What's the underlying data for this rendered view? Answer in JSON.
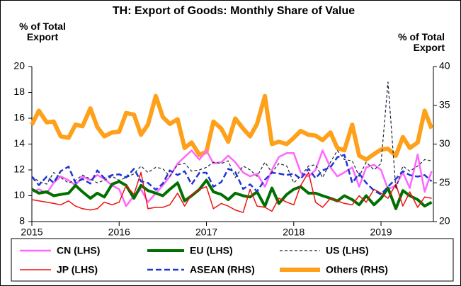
{
  "chart_data": {
    "type": "line",
    "title": "TH: Export of Goods: Monthly Share of Value",
    "y_label": "% of Total Export",
    "y2_label": "% of Total Export",
    "x": [
      2015,
      2015.08,
      2015.17,
      2015.25,
      2015.33,
      2015.42,
      2015.5,
      2015.58,
      2015.67,
      2015.75,
      2015.83,
      2015.92,
      2016,
      2016.08,
      2016.17,
      2016.25,
      2016.33,
      2016.42,
      2016.5,
      2016.58,
      2016.67,
      2016.75,
      2016.83,
      2016.92,
      2017,
      2017.08,
      2017.17,
      2017.25,
      2017.33,
      2017.42,
      2017.5,
      2017.58,
      2017.67,
      2017.75,
      2017.83,
      2017.92,
      2018,
      2018.08,
      2018.17,
      2018.25,
      2018.33,
      2018.42,
      2018.5,
      2018.58,
      2018.67,
      2018.75,
      2018.83,
      2018.92,
      2019,
      2019.08,
      2019.17,
      2019.25,
      2019.33,
      2019.42,
      2019.5,
      2019.58
    ],
    "xlim": [
      2015,
      2019.6
    ],
    "xticks": [
      2015,
      2016,
      2017,
      2018,
      2019
    ],
    "ylim": [
      8,
      20
    ],
    "yticks": [
      8,
      10,
      12,
      14,
      16,
      18,
      20
    ],
    "y2lim": [
      20,
      40
    ],
    "y2ticks": [
      20,
      25,
      30,
      35,
      40
    ],
    "legend": "bottom",
    "series": [
      {
        "name": "CN (LHS)",
        "color": "#ff66ff",
        "dashed": false,
        "values": [
          10.3,
          10.5,
          10.2,
          11,
          11.5,
          11.2,
          10.8,
          11.5,
          11.2,
          11.6,
          11.3,
          10.8,
          10.5,
          9.2,
          10,
          10.5,
          9.5,
          10.2,
          10.8,
          11.5,
          12.5,
          13,
          13.5,
          12.8,
          13.5,
          12.5,
          12.6,
          13.1,
          12.6,
          11.8,
          11.5,
          11.7,
          10.7,
          12,
          13,
          13.3,
          13.3,
          11.8,
          11.5,
          12,
          13.5,
          12.2,
          11.5,
          11.8,
          12.2,
          10.7,
          12.2,
          12.4,
          12,
          10.5,
          10.8,
          11.8,
          10.6,
          13.2,
          10.3,
          11.9
        ]
      },
      {
        "name": "EU (LHS)",
        "color": "#007000",
        "dashed": false,
        "values": [
          10.5,
          10.2,
          10.3,
          10,
          10.1,
          10.2,
          10.8,
          10.3,
          9.8,
          10.2,
          9.9,
          10.9,
          11.1,
          10.8,
          9.8,
          10.8,
          10.4,
          10.2,
          10,
          10.5,
          11,
          9.6,
          10,
          10.5,
          11.2,
          10.3,
          10.1,
          9.7,
          10.2,
          10,
          9.9,
          10.3,
          9.2,
          10.6,
          9.4,
          10.1,
          10.5,
          10.7,
          10.2,
          10.2,
          10,
          9.8,
          9.6,
          10,
          9.7,
          9.3,
          10,
          9.3,
          9.8,
          10.6,
          9,
          10.4,
          10,
          9.7,
          9.2,
          9.5
        ]
      },
      {
        "name": "US (LHS)",
        "color": "#1a2233",
        "dashed": true,
        "values": [
          11.5,
          11.1,
          10.9,
          11.8,
          11.4,
          11,
          11.2,
          11.6,
          11.3,
          11,
          11.2,
          11.5,
          11.2,
          11.4,
          11.7,
          12.3,
          11.8,
          12.2,
          12.1,
          11.5,
          12.4,
          12.5,
          11.9,
          12,
          12.2,
          12.6,
          12.5,
          12.7,
          11.4,
          12.3,
          12,
          11.5,
          12.6,
          11.8,
          12.5,
          12.3,
          11,
          11.5,
          12.3,
          12.4,
          11.4,
          12.6,
          13.5,
          12.8,
          12.7,
          11.5,
          12.6,
          12,
          12.5,
          18.8,
          10.5,
          12.3,
          11.9,
          12.3,
          12.8,
          12.7
        ]
      },
      {
        "name": "JP (LHS)",
        "color": "#ee1111",
        "dashed": false,
        "values": [
          9.7,
          9.6,
          9.5,
          9.4,
          9.3,
          9.6,
          9.2,
          9,
          8.9,
          9,
          9.5,
          9.3,
          9.5,
          10.8,
          10.1,
          11.8,
          9,
          9.1,
          9.1,
          9.3,
          10.2,
          9.2,
          10.1,
          10.5,
          10.7,
          9,
          9.4,
          9.2,
          8.9,
          8.7,
          10.5,
          9.2,
          9.1,
          8.8,
          9.8,
          9.5,
          9.3,
          10.8,
          11.8,
          9.5,
          9.1,
          9.8,
          9.6,
          9.4,
          9.3,
          10,
          9.5,
          10.5,
          10.2,
          9.8,
          10.9,
          9.2,
          10.3,
          9.1,
          9.9,
          9.8
        ]
      },
      {
        "name": "ASEAN (RHS)",
        "color": "#1f35d6",
        "dashed": true,
        "axis": "y2",
        "values": [
          25.8,
          24.7,
          25.8,
          25,
          26.5,
          27.1,
          25,
          25.5,
          24.9,
          26.6,
          25.6,
          26,
          26.1,
          25.7,
          26.8,
          25.2,
          25,
          24.1,
          24.9,
          26.6,
          26,
          26.5,
          24.8,
          26.3,
          26.3,
          24.5,
          25.1,
          26.8,
          26.4,
          24.2,
          24.8,
          23.9,
          25.4,
          26.3,
          26.2,
          26,
          26.2,
          25.5,
          26.8,
          25.6,
          26.6,
          27,
          28.3,
          28.6,
          25,
          26.2,
          25,
          24,
          23.5,
          24.5,
          25.5,
          26.5,
          26,
          25.8,
          26,
          25.2
        ]
      },
      {
        "name": "Others (RHS)",
        "color": "#ffa01a",
        "dashed": false,
        "axis": "y2",
        "values": [
          32.5,
          34.3,
          32.8,
          32.9,
          31,
          30.8,
          32.5,
          32.3,
          34.6,
          32.2,
          31,
          31.5,
          31.6,
          34,
          33.8,
          31.2,
          32.5,
          36.2,
          33.5,
          32.6,
          33.2,
          29.5,
          30.2,
          28.6,
          29,
          32.9,
          32,
          30.3,
          33.3,
          32,
          31,
          32.6,
          36.2,
          30,
          30.3,
          30,
          30.8,
          31.7,
          31.2,
          31.1,
          30.5,
          31.5,
          29.5,
          29.2,
          32.5,
          28.5,
          28,
          28.7,
          29.3,
          29.4,
          28.5,
          30.9,
          29.5,
          30.2,
          34.3,
          32
        ]
      }
    ]
  }
}
